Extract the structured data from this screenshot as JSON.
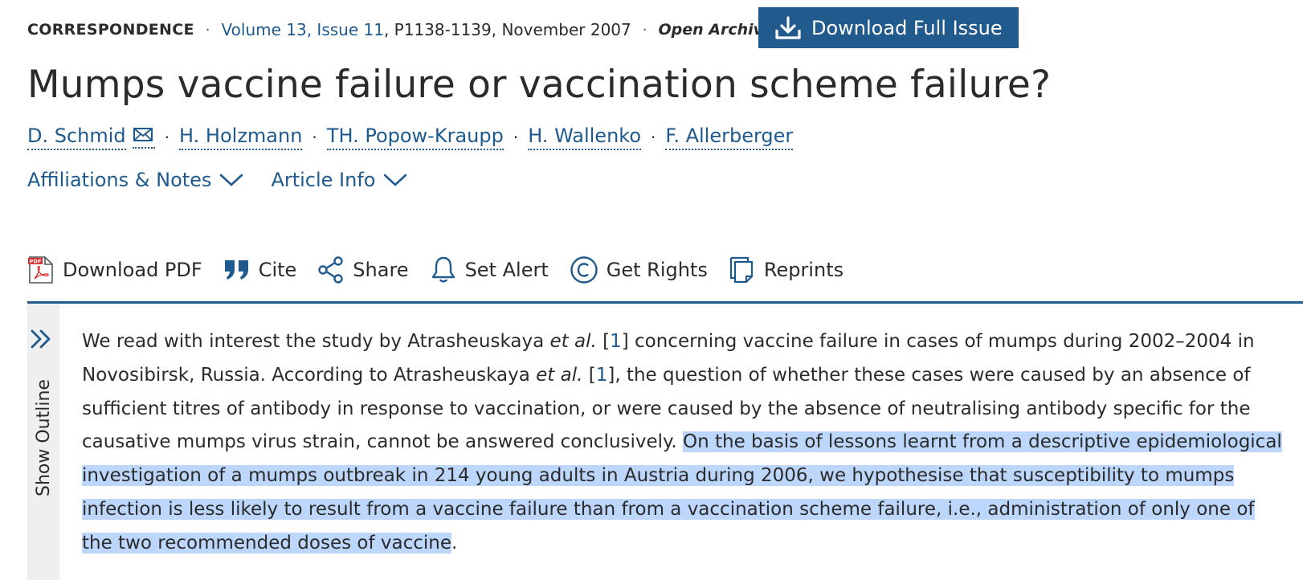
{
  "meta": {
    "article_type": "CORRESPONDENCE",
    "volume_issue": "Volume 13, Issue 11",
    "pages_date": ", P1138-1139, November 2007",
    "access": "Open Archive"
  },
  "download_issue": {
    "label": "Download Full Issue"
  },
  "title": "Mumps vaccine failure or vaccination scheme failure?",
  "authors": [
    "D. Schmid",
    "H. Holzmann",
    "TH. Popow-Kraupp",
    "H. Wallenko",
    "F. Allerberger"
  ],
  "info_links": {
    "affiliations": "Affiliations & Notes",
    "article_info": "Article Info"
  },
  "toolbar": {
    "download_pdf": "Download PDF",
    "cite": "Cite",
    "share": "Share",
    "set_alert": "Set Alert",
    "get_rights": "Get Rights",
    "reprints": "Reprints"
  },
  "outline": {
    "label": "Show Outline"
  },
  "body": {
    "p1": "We read with interest the study by Atrasheuskaya ",
    "etal": "et al.",
    "ref1": "1",
    "p2": " concerning vaccine failure in cases of mumps during 2002–2004 in Novosibirsk, Russia. According to Atrasheuskaya ",
    "p3": ", the question of whether these cases were caused by an absence of sufficient titres of antibody in response to vaccination, or were caused by the absence of neutralising antibody specific for the causative mumps virus strain, cannot be answered conclusively. ",
    "highlighted": "On the basis of lessons learnt from a descriptive epidemiological investigation of a mumps outbreak in 214 young adults in Austria during 2006, we hypothesise that susceptibility to mumps infection is less likely to result from a vaccine failure than from a vaccination scheme failure, i.e., administration of only one of the two recommended doses of vaccine",
    "end": "."
  },
  "colors": {
    "brand_blue": "#215a8c",
    "link_blue": "#1f5a8f",
    "highlight": "#bcd7fb"
  }
}
